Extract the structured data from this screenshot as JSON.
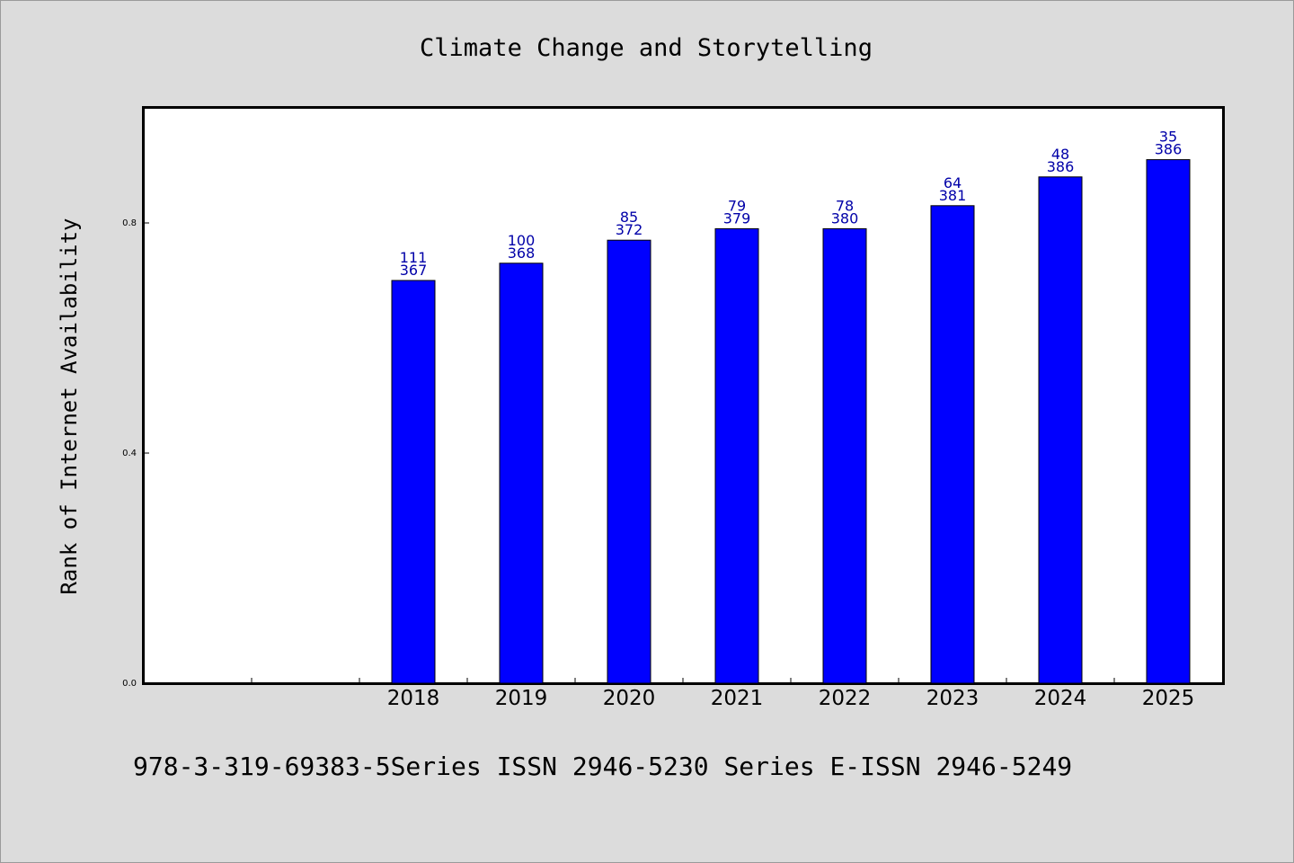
{
  "chart_data": {
    "type": "bar",
    "title": "Climate Change and Storytelling",
    "xlabel": "",
    "ylabel": "Rank of Internet Availability",
    "categories": [
      "2018",
      "2019",
      "2020",
      "2021",
      "2022",
      "2023",
      "2024",
      "2025"
    ],
    "series": [
      {
        "values": [
          0.7,
          0.73,
          0.77,
          0.79,
          0.79,
          0.83,
          0.88,
          0.91
        ],
        "label_top": [
          "111",
          "100",
          "85",
          "79",
          "78",
          "64",
          "48",
          "35"
        ],
        "label_bottom": [
          "367",
          "368",
          "372",
          "379",
          "380",
          "381",
          "386",
          "386"
        ]
      }
    ],
    "ylim": [
      0,
      1.0
    ],
    "yticks": [
      0.0,
      0.4,
      0.8
    ],
    "ytick_labels": [
      "0.0",
      "0.4",
      "0.8"
    ],
    "grid": false,
    "bar_color": "#0000ff",
    "label_color": "#0000a8"
  },
  "footer": {
    "text": "978-3-319-69383-5Series ISSN 2946-5230 Series E-ISSN 2946-5249"
  }
}
